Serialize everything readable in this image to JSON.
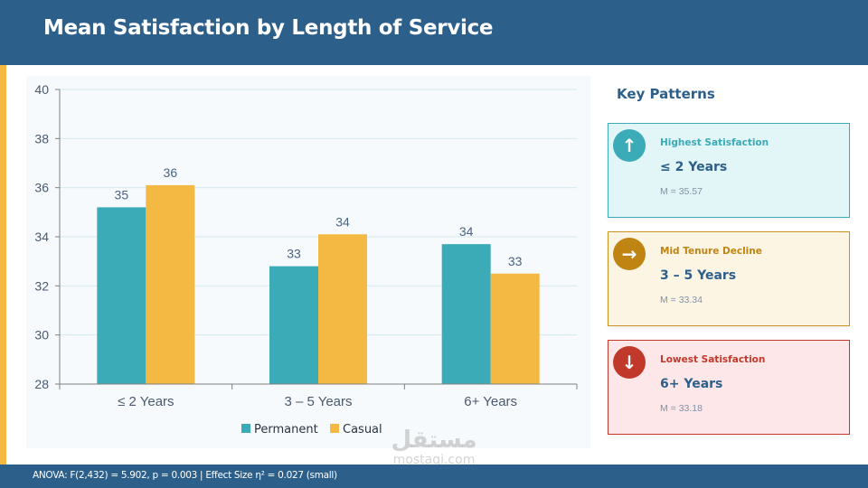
{
  "header": {
    "title": "Mean Satisfaction by Length of Service"
  },
  "colors": {
    "permanent": "#3aabb7",
    "casual": "#f4b942",
    "header": "#2d5f8b"
  },
  "chart_data": {
    "type": "bar",
    "title": "",
    "xlabel": "",
    "ylabel": "",
    "categories": [
      "≤ 2 Years",
      "3 – 5 Years",
      "6+ Years"
    ],
    "series": [
      {
        "name": "Permanent",
        "values": [
          35.2,
          32.8,
          33.7
        ],
        "labels": [
          "35",
          "33",
          "34"
        ]
      },
      {
        "name": "Casual",
        "values": [
          36.1,
          34.1,
          32.5
        ],
        "labels": [
          "36",
          "34",
          "33"
        ]
      }
    ],
    "ylim": [
      28,
      40
    ],
    "yticks": [
      28,
      30,
      32,
      34,
      36,
      38,
      40
    ],
    "grid": true,
    "legend": "bottom-center"
  },
  "panel": {
    "title": "Key Patterns",
    "cards": [
      {
        "icon": "arrow-up-icon",
        "glyph": "↑",
        "label": "Highest Satisfaction",
        "value": "≤ 2 Years",
        "mean": "M = 35.57",
        "accent": "#3aabb7",
        "bg": "#e2f5f7",
        "border": "#3aabb7",
        "label_color": "#3aabb7"
      },
      {
        "icon": "arrow-right-icon",
        "glyph": "→",
        "label": "Mid Tenure Decline",
        "value": "3 – 5 Years",
        "mean": "M = 33.34",
        "accent": "#bf8412",
        "bg": "#fdf5e4",
        "border": "#c8921e",
        "label_color": "#bf8412"
      },
      {
        "icon": "arrow-down-icon",
        "glyph": "↓",
        "label": "Lowest Satisfaction",
        "value": "6+ Years",
        "mean": "M = 33.18",
        "accent": "#c0392b",
        "bg": "#fde7e8",
        "border": "#c0392b",
        "label_color": "#c0392b"
      }
    ]
  },
  "footer": {
    "text": "ANOVA: F(2,432) = 5.902, p = 0.003  |  Effect Size η² = 0.027 (small)"
  },
  "watermark": {
    "arabic": "مستقل",
    "latin": "mostaqi.com"
  }
}
